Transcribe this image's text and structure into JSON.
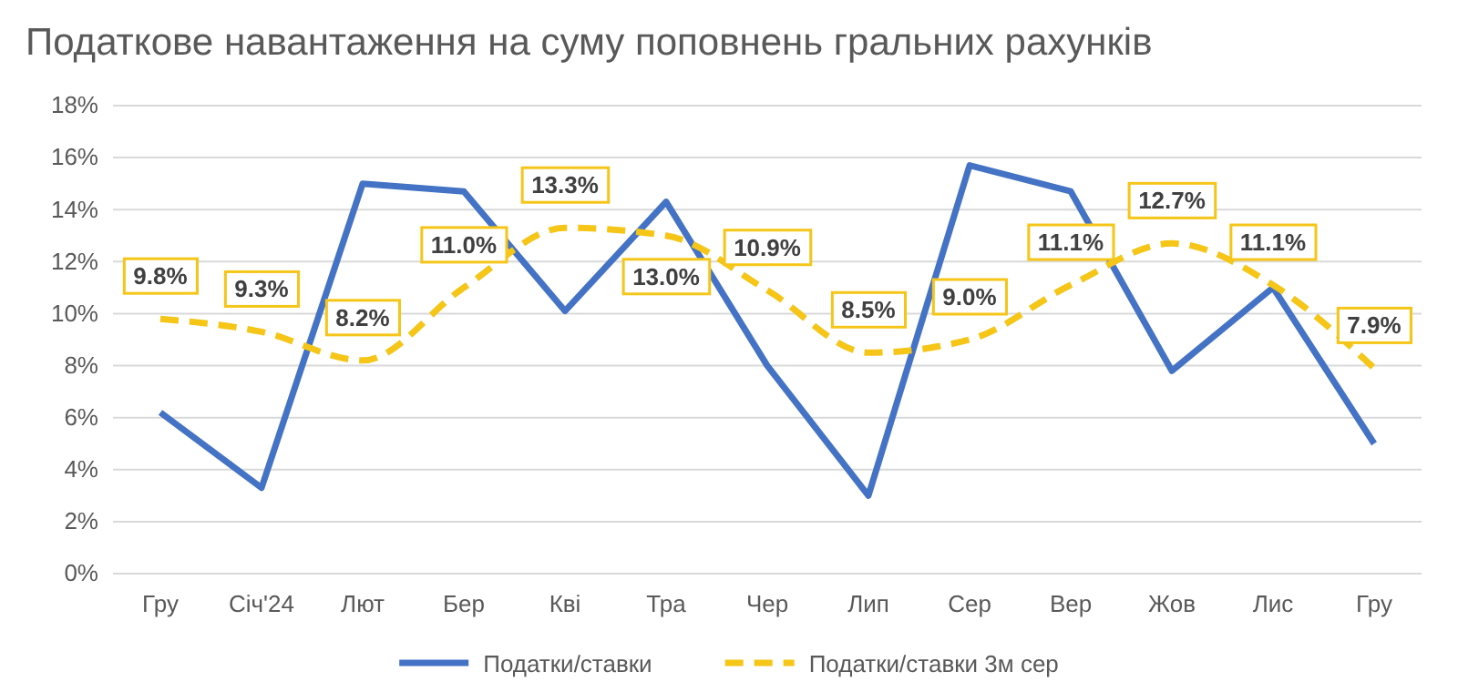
{
  "chart_data": {
    "type": "line",
    "title": "Податкове навантаження на суму поповнень гральних рахунків",
    "categories": [
      "Гру",
      "Січ'24",
      "Лют",
      "Бер",
      "Кві",
      "Тра",
      "Чер",
      "Лип",
      "Сер",
      "Вер",
      "Жов",
      "Лис",
      "Гру"
    ],
    "series": [
      {
        "name": "Податки/ставки",
        "color": "#4472c4",
        "line_style": "solid",
        "values": [
          6.2,
          3.3,
          15.0,
          14.7,
          10.1,
          14.3,
          8.0,
          3.0,
          15.7,
          14.7,
          7.8,
          11.0,
          5.0
        ]
      },
      {
        "name": "Податки/ставки 3м сер",
        "color": "#f5c518",
        "line_style": "dashed",
        "values": [
          9.8,
          9.3,
          8.2,
          11.0,
          13.3,
          13.0,
          10.9,
          8.5,
          9.0,
          11.1,
          12.7,
          11.1,
          7.9
        ],
        "value_labels": [
          "9.8%",
          "9.3%",
          "8.2%",
          "11.0%",
          "13.3%",
          "13.0%",
          "10.9%",
          "8.5%",
          "9.0%",
          "11.1%",
          "12.7%",
          "11.1%",
          "7.9%"
        ]
      }
    ],
    "ylim": [
      0,
      18
    ],
    "yticks": [
      {
        "value": 0,
        "label": "0%"
      },
      {
        "value": 2,
        "label": "2%"
      },
      {
        "value": 4,
        "label": "4%"
      },
      {
        "value": 6,
        "label": "6%"
      },
      {
        "value": 8,
        "label": "8%"
      },
      {
        "value": 10,
        "label": "10%"
      },
      {
        "value": 12,
        "label": "12%"
      },
      {
        "value": 14,
        "label": "14%"
      },
      {
        "value": 16,
        "label": "16%"
      },
      {
        "value": 18,
        "label": "18%"
      }
    ],
    "grid": "y",
    "legend": "bottom",
    "marker": "none"
  }
}
